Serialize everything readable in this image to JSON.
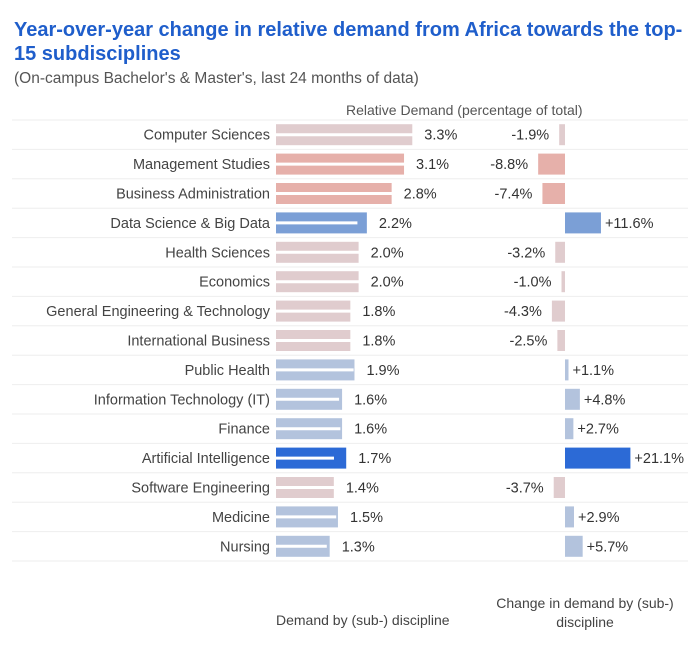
{
  "header": {
    "title": "Year-over-year change in relative demand from Africa towards the top-15 subdisciplines",
    "subtitle": "(On-campus Bachelor's & Master's, last 24 months of data)",
    "column_header": "Relative Demand (percentage of total)"
  },
  "chart_data": {
    "type": "bar",
    "categories": [
      "Computer Sciences",
      "Management Studies",
      "Business Administration",
      "Data Science & Big Data",
      "Health Sciences",
      "Economics",
      "General Engineering & Technology",
      "International Business",
      "Public Health",
      "Information Technology (IT)",
      "Finance",
      "Artificial Intelligence",
      "Software Engineering",
      "Medicine",
      "Nursing"
    ],
    "series": [
      {
        "name": "Demand by (sub-) discipline",
        "values": [
          3.3,
          3.1,
          2.8,
          2.2,
          2.0,
          2.0,
          1.8,
          1.8,
          1.9,
          1.6,
          1.6,
          1.7,
          1.4,
          1.5,
          1.3
        ],
        "labels": [
          "3.3%",
          "3.1%",
          "2.8%",
          "2.2%",
          "2.0%",
          "2.0%",
          "1.8%",
          "1.8%",
          "1.9%",
          "1.6%",
          "1.6%",
          "1.7%",
          "1.4%",
          "1.5%",
          "1.3%"
        ]
      },
      {
        "name": "Change in demand by (sub-) discipline",
        "values": [
          -1.9,
          -8.8,
          -7.4,
          11.6,
          -3.2,
          -1.0,
          -4.3,
          -2.5,
          1.1,
          4.8,
          2.7,
          21.1,
          -3.7,
          2.9,
          5.7
        ],
        "labels": [
          "-1.9%",
          "-8.8%",
          "-7.4%",
          "+11.6%",
          "-3.2%",
          "-1.0%",
          "-4.3%",
          "-2.5%",
          "+1.1%",
          "+4.8%",
          "+2.7%",
          "+21.1%",
          "-3.7%",
          "+2.9%",
          "+5.7%"
        ]
      }
    ],
    "xlabel": "Demand by (sub-) discipline",
    "xlabel_right": "Change in demand by (sub-) discipline",
    "grid": false,
    "legend": "none",
    "colors": {
      "neg_light": "#e0ccce",
      "neg_mid": "#e6b0aa",
      "pos_light": "#b3c3dd",
      "pos_mid": "#7b9fd6",
      "pos_strong": "#2c6ad6",
      "neutral": "#e6e6e6",
      "bar_line": "#ffffff"
    }
  }
}
